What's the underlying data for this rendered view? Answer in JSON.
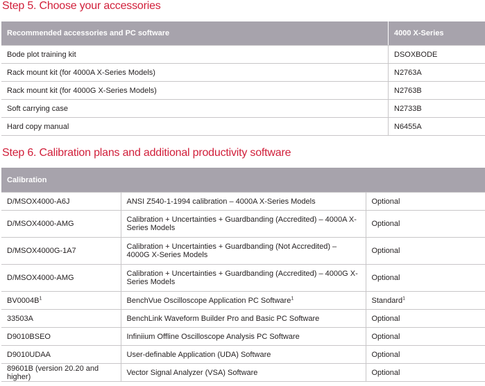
{
  "step5": {
    "title": "Step 5. Choose your accessories",
    "headers": [
      "Recommended accessories and PC software",
      "4000 X-Series"
    ],
    "rows": [
      {
        "name": "Bode plot training kit",
        "part": "DSOXBODE"
      },
      {
        "name": "Rack mount kit (for 4000A X-Series Models)",
        "part": "N2763A"
      },
      {
        "name": "Rack mount kit (for 4000G X-Series Models)",
        "part": "N2763B"
      },
      {
        "name": "Soft carrying case",
        "part": "N2733B"
      },
      {
        "name": "Hard copy manual",
        "part": "N6455A"
      }
    ]
  },
  "step6": {
    "title": "Step 6. Calibration plans and additional productivity software",
    "header": "Calibration",
    "rows": [
      {
        "model": "D/MSOX4000-A6J",
        "desc": "ANSI Z540-1-1994 calibration – 4000A X-Series Models",
        "status": "Optional"
      },
      {
        "model": "D/MSOX4000-AMG",
        "desc": "Calibration + Uncertainties + Guardbanding (Accredited) – 4000A X-Series Models",
        "status": "Optional"
      },
      {
        "model": "D/MSOX4000G-1A7",
        "desc": "Calibration + Uncertainties + Guardbanding (Not Accredited) – 4000G X-Series Models",
        "status": "Optional"
      },
      {
        "model": "D/MSOX4000-AMG",
        "desc": "Calibration + Uncertainties + Guardbanding (Accredited) – 4000G X-Series Models",
        "status": "Optional"
      },
      {
        "model": "BV0004B",
        "desc": "BenchVue Oscilloscope Application PC Software",
        "status": "Standard",
        "footnote": "1"
      },
      {
        "model": "33503A",
        "desc": "BenchLink Waveform Builder Pro and Basic PC Software",
        "status": "Optional"
      },
      {
        "model": "D9010BSEO",
        "desc": "Infiniium Offline Oscilloscope Analysis PC Software",
        "status": "Optional"
      },
      {
        "model": "D9010UDAA",
        "desc": "User-definable Application (UDA) Software",
        "status": "Optional"
      },
      {
        "model": "89601B (version 20.20 and higher)",
        "desc": "Vector Signal Analyzer (VSA) Software",
        "status": "Optional"
      }
    ]
  }
}
